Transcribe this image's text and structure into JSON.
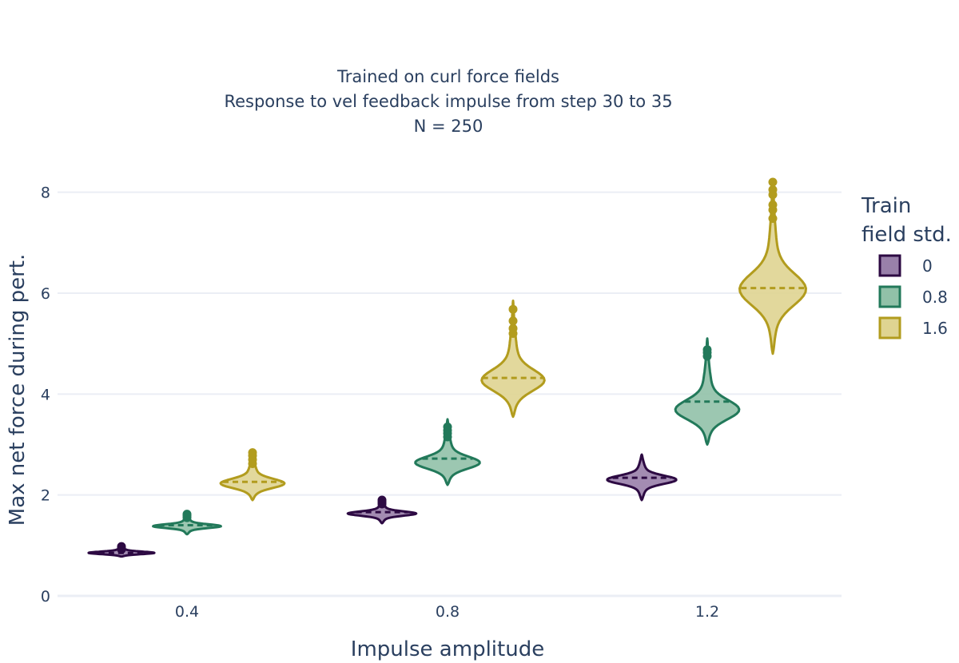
{
  "chart_data": {
    "type": "violin",
    "title_lines": [
      "Trained on curl force fields",
      "Response to vel feedback impulse from step 30 to 35",
      "N = 250"
    ],
    "xlabel": "Impulse amplitude",
    "ylabel": "Max net force during pert.",
    "categories": [
      "0.4",
      "0.8",
      "1.2"
    ],
    "yticks": [
      "0",
      "2",
      "4",
      "6",
      "8"
    ],
    "ylim": [
      0,
      8.2
    ],
    "grid": true,
    "legend": {
      "title": "Train field std.",
      "title_lines": [
        "Train",
        "field std."
      ],
      "placement": "right"
    },
    "series": [
      {
        "name": "0",
        "color": "#2d0a43",
        "fill": "#9980aa",
        "violins": [
          {
            "category": "0.4",
            "min": 0.78,
            "max": 0.98,
            "median": 0.85,
            "mode": 0.85,
            "outliers": [
              0.92,
              0.95,
              0.98
            ]
          },
          {
            "category": "0.8",
            "min": 1.44,
            "max": 1.9,
            "median": 1.66,
            "mode": 1.63,
            "outliers": [
              1.82,
              1.86,
              1.9
            ]
          },
          {
            "category": "1.2",
            "min": 1.9,
            "max": 2.8,
            "median": 2.34,
            "mode": 2.3,
            "outliers": []
          }
        ]
      },
      {
        "name": "0.8",
        "color": "#22795a",
        "fill": "#91c1a8",
        "violins": [
          {
            "category": "0.4",
            "min": 1.22,
            "max": 1.62,
            "median": 1.4,
            "mode": 1.38,
            "outliers": [
              1.55,
              1.59,
              1.62
            ]
          },
          {
            "category": "0.8",
            "min": 2.2,
            "max": 3.5,
            "median": 2.72,
            "mode": 2.63,
            "outliers": [
              3.15,
              3.22,
              3.28,
              3.35
            ]
          },
          {
            "category": "1.2",
            "min": 3.0,
            "max": 5.1,
            "median": 3.85,
            "mode": 3.67,
            "outliers": [
              4.75,
              4.82,
              4.88
            ]
          }
        ]
      },
      {
        "name": "1.6",
        "color": "#b29c1e",
        "fill": "#dfd491",
        "violins": [
          {
            "category": "0.4",
            "min": 1.9,
            "max": 2.9,
            "median": 2.26,
            "mode": 2.22,
            "outliers": [
              2.62,
              2.7,
              2.78,
              2.84
            ]
          },
          {
            "category": "0.8",
            "min": 3.55,
            "max": 5.85,
            "median": 4.32,
            "mode": 4.25,
            "outliers": [
              5.2,
              5.3,
              5.45,
              5.68
            ]
          },
          {
            "category": "1.2",
            "min": 4.8,
            "max": 8.25,
            "median": 6.1,
            "mode": 6.05,
            "outliers": [
              7.48,
              7.65,
              7.75,
              7.95,
              8.05,
              8.2
            ]
          }
        ]
      }
    ]
  }
}
